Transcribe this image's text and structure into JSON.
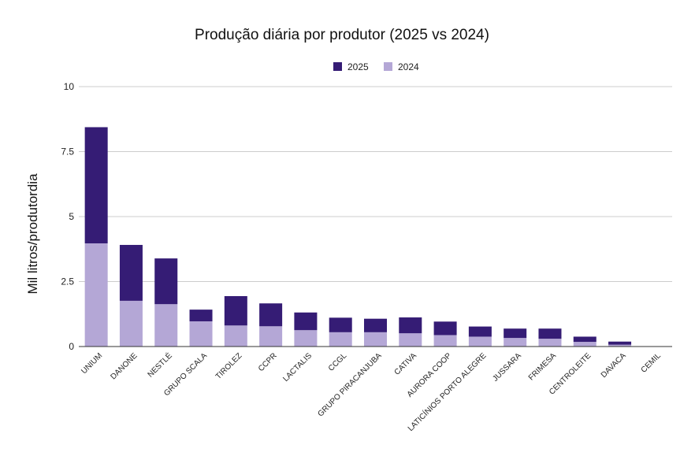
{
  "chart_data": {
    "type": "bar",
    "stacked": true,
    "title": "Produção diária por produtor (2025 vs 2024)",
    "xlabel": "",
    "ylabel": "Mil litros/produtordia",
    "ylim": [
      0,
      10
    ],
    "yticks": [
      0,
      2.5,
      5,
      7.5,
      10
    ],
    "ytick_labels": [
      "0",
      "2.5",
      "5",
      "7.5",
      "10"
    ],
    "grid": true,
    "legend_position": "top-center",
    "categories": [
      "UNIUM",
      "DANONE",
      "NESTLÉ",
      "GRUPO SCALA",
      "TIROLEZ",
      "CCPR",
      "LACTALIS",
      "CCGL",
      "GRUPO PIRACANJUBA",
      "CATIVA",
      "AURORA COOP",
      "LATICÍNIOS PORTO ALEGRE",
      "JUSSARA",
      "FRIMESA",
      "CENTROLEITE",
      "DAVACA",
      "CEMIL"
    ],
    "series": [
      {
        "name": "2024",
        "color": "#b4a7d6",
        "values": [
          3.97,
          1.76,
          1.63,
          0.97,
          0.81,
          0.78,
          0.63,
          0.55,
          0.55,
          0.51,
          0.44,
          0.38,
          0.33,
          0.3,
          0.18,
          0.07,
          0.0
        ]
      },
      {
        "name": "2025",
        "color": "#351c75",
        "values": [
          4.47,
          2.15,
          1.76,
          0.45,
          1.13,
          0.88,
          0.68,
          0.56,
          0.52,
          0.61,
          0.52,
          0.39,
          0.36,
          0.39,
          0.2,
          0.12,
          0.0
        ]
      }
    ],
    "legend": [
      {
        "name": "2025",
        "color": "#351c75"
      },
      {
        "name": "2024",
        "color": "#b4a7d6"
      }
    ]
  }
}
